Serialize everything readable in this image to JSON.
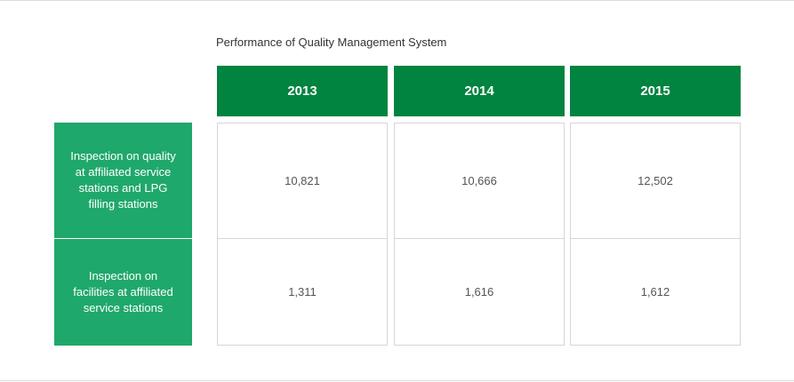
{
  "caption": "Performance of Quality Management System",
  "table": {
    "years": [
      "2013",
      "2014",
      "2015"
    ],
    "rows": [
      {
        "label": "Inspection on quality at affiliated service stations and LPG filling stations",
        "values": [
          "10,821",
          "10,666",
          "12,502"
        ]
      },
      {
        "label": "Inspection on facilities at affiliated service stations",
        "values": [
          "1,311",
          "1,616",
          "1,612"
        ]
      }
    ]
  },
  "colors": {
    "header_bg": "#00843f",
    "row_label_bg": "#1fa86b",
    "border": "#d6d6d6"
  }
}
